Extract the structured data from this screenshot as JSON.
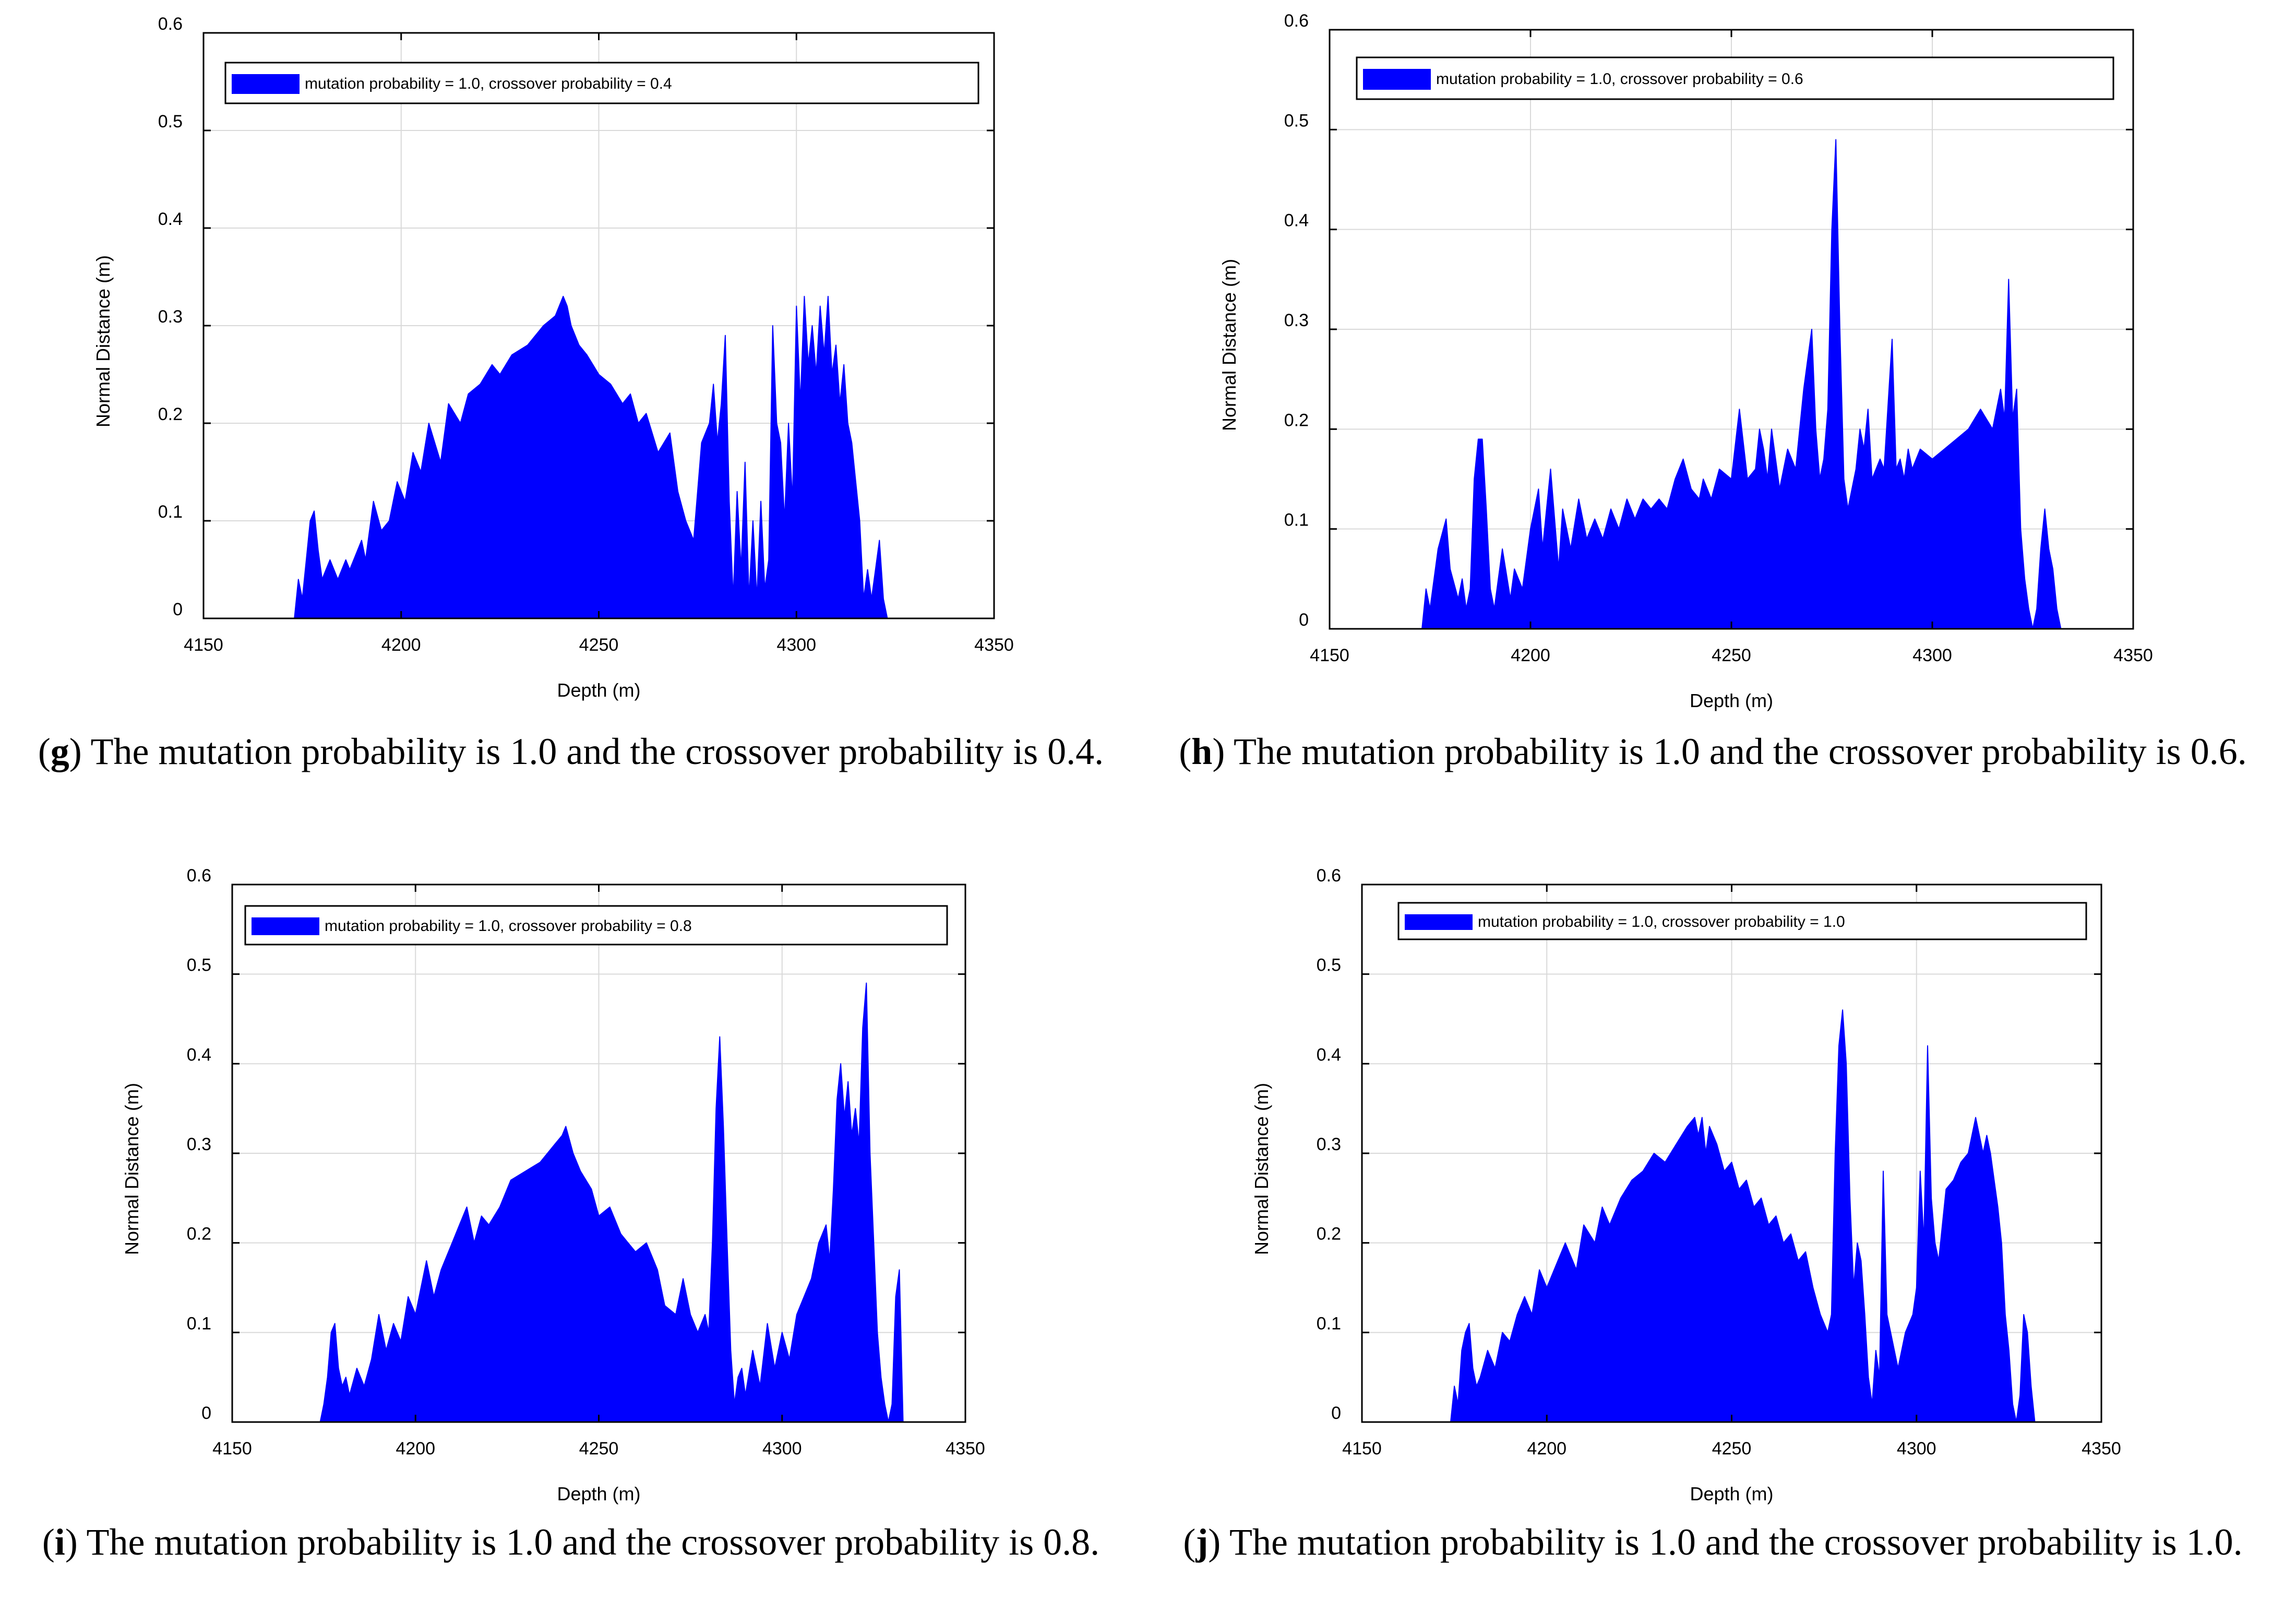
{
  "figure": {
    "captions": [
      {
        "letter": "g",
        "text": "The mutation probability is 1.0 and the crossover probability is 0.4."
      },
      {
        "letter": "h",
        "text": "The mutation probability is 1.0 and the crossover probability is 0.6."
      },
      {
        "letter": "i",
        "text": "The mutation probability is 1.0 and the crossover probability is 0.8."
      },
      {
        "letter": "j",
        "text": "The mutation probability is 1.0 and the crossover probability is 1.0."
      }
    ]
  },
  "colors": {
    "fill": "#0000ff",
    "grid": "#d9d9d9",
    "axis": "#000000"
  },
  "chart_data": [
    {
      "type": "area",
      "panel": "g",
      "xlabel": "Depth (m)",
      "ylabel": "Normal Distance (m)",
      "xlim": [
        4150,
        4350
      ],
      "ylim": [
        0,
        0.6
      ],
      "xticks": [
        4150,
        4200,
        4250,
        4300,
        4350
      ],
      "yticks": [
        0,
        0.1,
        0.2,
        0.3,
        0.4,
        0.5,
        0.6
      ],
      "grid": true,
      "legend": "top",
      "series": [
        {
          "name": "mutation probability = 1.0, crossover probability = 0.4",
          "x": [
            4173,
            4174,
            4175,
            4176,
            4177,
            4178,
            4179,
            4180,
            4181,
            4182,
            4184,
            4186,
            4187,
            4189,
            4190,
            4191,
            4193,
            4195,
            4197,
            4199,
            4201,
            4203,
            4205,
            4207,
            4210,
            4212,
            4215,
            4217,
            4220,
            4223,
            4225,
            4228,
            4232,
            4236,
            4239,
            4241,
            4242,
            4243,
            4245,
            4247,
            4250,
            4253,
            4256,
            4258,
            4260,
            4262,
            4265,
            4268,
            4270,
            4272,
            4274,
            4276,
            4278,
            4279,
            4280,
            4281,
            4282,
            4283,
            4284,
            4285,
            4286,
            4287,
            4288,
            4289,
            4290,
            4291,
            4292,
            4293,
            4294,
            4295,
            4296,
            4297,
            4298,
            4299,
            4300,
            4301,
            4302,
            4303,
            4304,
            4305,
            4306,
            4307,
            4308,
            4309,
            4310,
            4311,
            4312,
            4313,
            4314,
            4315,
            4316,
            4317,
            4318,
            4319,
            4320,
            4321,
            4322,
            4323,
            4324,
            4325,
            4326,
            4327,
            4328,
            4329,
            4330,
            4331,
            4332,
            4333
          ],
          "y": [
            0,
            0.04,
            0.02,
            0.06,
            0.1,
            0.11,
            0.07,
            0.04,
            0.05,
            0.06,
            0.04,
            0.06,
            0.05,
            0.07,
            0.08,
            0.06,
            0.12,
            0.09,
            0.1,
            0.14,
            0.12,
            0.17,
            0.15,
            0.2,
            0.16,
            0.22,
            0.2,
            0.23,
            0.24,
            0.26,
            0.25,
            0.27,
            0.28,
            0.3,
            0.31,
            0.33,
            0.32,
            0.3,
            0.28,
            0.27,
            0.25,
            0.24,
            0.22,
            0.23,
            0.2,
            0.21,
            0.17,
            0.19,
            0.13,
            0.1,
            0.08,
            0.18,
            0.2,
            0.24,
            0.18,
            0.22,
            0.29,
            0.12,
            0.02,
            0.13,
            0.05,
            0.16,
            0.02,
            0.1,
            0.02,
            0.12,
            0.03,
            0.06,
            0.3,
            0.2,
            0.18,
            0.1,
            0.2,
            0.12,
            0.32,
            0.22,
            0.33,
            0.26,
            0.3,
            0.25,
            0.32,
            0.27,
            0.33,
            0.25,
            0.28,
            0.22,
            0.26,
            0.2,
            0.18,
            0.14,
            0.1,
            0.02,
            0.05,
            0.02,
            0.05,
            0.08,
            0.02,
            0,
            0,
            0,
            0,
            0,
            0,
            0,
            0,
            0,
            0,
            0
          ]
        }
      ]
    },
    {
      "type": "area",
      "panel": "h",
      "xlabel": "Depth (m)",
      "ylabel": "Normal Distance (m)",
      "xlim": [
        4150,
        4350
      ],
      "ylim": [
        0,
        0.6
      ],
      "xticks": [
        4150,
        4200,
        4250,
        4300,
        4350
      ],
      "yticks": [
        0,
        0.1,
        0.2,
        0.3,
        0.4,
        0.5,
        0.6
      ],
      "grid": true,
      "legend": "top",
      "series": [
        {
          "name": "mutation probability = 1.0, crossover probability = 0.6",
          "x": [
            4173,
            4174,
            4175,
            4177,
            4179,
            4180,
            4182,
            4183,
            4184,
            4185,
            4186,
            4187,
            4188,
            4189,
            4190,
            4191,
            4193,
            4195,
            4196,
            4198,
            4200,
            4202,
            4203,
            4205,
            4207,
            4208,
            4210,
            4212,
            4214,
            4216,
            4218,
            4220,
            4222,
            4224,
            4226,
            4228,
            4230,
            4232,
            4234,
            4236,
            4238,
            4240,
            4242,
            4243,
            4245,
            4247,
            4250,
            4252,
            4254,
            4256,
            4257,
            4258,
            4259,
            4260,
            4262,
            4264,
            4266,
            4268,
            4270,
            4271,
            4272,
            4273,
            4274,
            4275,
            4276,
            4277,
            4278,
            4279,
            4280,
            4281,
            4282,
            4283,
            4284,
            4285,
            4287,
            4288,
            4290,
            4291,
            4292,
            4293,
            4294,
            4295,
            4297,
            4300,
            4303,
            4306,
            4309,
            4312,
            4315,
            4317,
            4318,
            4319,
            4320,
            4321,
            4322,
            4323,
            4324,
            4325,
            4326,
            4327,
            4328,
            4329,
            4330,
            4331,
            4332,
            4333
          ],
          "y": [
            0,
            0.04,
            0.02,
            0.08,
            0.11,
            0.06,
            0.03,
            0.05,
            0.02,
            0.04,
            0.15,
            0.19,
            0.19,
            0.12,
            0.04,
            0.02,
            0.08,
            0.03,
            0.06,
            0.04,
            0.1,
            0.14,
            0.08,
            0.16,
            0.06,
            0.12,
            0.08,
            0.13,
            0.09,
            0.11,
            0.09,
            0.12,
            0.1,
            0.13,
            0.11,
            0.13,
            0.12,
            0.13,
            0.12,
            0.15,
            0.17,
            0.14,
            0.13,
            0.15,
            0.13,
            0.16,
            0.15,
            0.22,
            0.15,
            0.16,
            0.2,
            0.18,
            0.15,
            0.2,
            0.14,
            0.18,
            0.16,
            0.24,
            0.3,
            0.2,
            0.15,
            0.17,
            0.22,
            0.4,
            0.49,
            0.3,
            0.15,
            0.12,
            0.14,
            0.16,
            0.2,
            0.18,
            0.22,
            0.15,
            0.17,
            0.16,
            0.29,
            0.16,
            0.17,
            0.15,
            0.18,
            0.16,
            0.18,
            0.17,
            0.18,
            0.19,
            0.2,
            0.22,
            0.2,
            0.24,
            0.21,
            0.35,
            0.21,
            0.24,
            0.1,
            0.05,
            0.02,
            0.0,
            0.02,
            0.08,
            0.12,
            0.08,
            0.06,
            0.02,
            0,
            0
          ]
        }
      ]
    },
    {
      "type": "area",
      "panel": "i",
      "xlabel": "Depth (m)",
      "ylabel": "Normal Distance (m)",
      "xlim": [
        4150,
        4350
      ],
      "ylim": [
        0,
        0.6
      ],
      "xticks": [
        4150,
        4200,
        4250,
        4300,
        4350
      ],
      "yticks": [
        0,
        0.1,
        0.2,
        0.3,
        0.4,
        0.5,
        0.6
      ],
      "grid": true,
      "legend": "top",
      "series": [
        {
          "name": "mutation probability = 1.0, crossover probability = 0.8",
          "x": [
            4174,
            4175,
            4176,
            4177,
            4178,
            4179,
            4180,
            4181,
            4182,
            4184,
            4186,
            4188,
            4190,
            4192,
            4194,
            4196,
            4198,
            4200,
            4203,
            4205,
            4207,
            4210,
            4212,
            4214,
            4216,
            4218,
            4220,
            4223,
            4226,
            4230,
            4234,
            4238,
            4240,
            4241,
            4243,
            4245,
            4248,
            4250,
            4253,
            4256,
            4258,
            4260,
            4263,
            4266,
            4268,
            4271,
            4273,
            4275,
            4277,
            4279,
            4280,
            4281,
            4282,
            4283,
            4284,
            4285,
            4286,
            4287,
            4288,
            4289,
            4290,
            4292,
            4294,
            4296,
            4298,
            4300,
            4302,
            4304,
            4306,
            4308,
            4310,
            4312,
            4313,
            4314,
            4315,
            4316,
            4317,
            4318,
            4319,
            4320,
            4321,
            4322,
            4323,
            4324,
            4325,
            4326,
            4327,
            4328,
            4329,
            4330,
            4331,
            4332,
            4333
          ],
          "y": [
            0,
            0.02,
            0.05,
            0.1,
            0.11,
            0.06,
            0.04,
            0.05,
            0.03,
            0.06,
            0.04,
            0.07,
            0.12,
            0.08,
            0.11,
            0.09,
            0.14,
            0.12,
            0.18,
            0.14,
            0.17,
            0.2,
            0.22,
            0.24,
            0.2,
            0.23,
            0.22,
            0.24,
            0.27,
            0.28,
            0.29,
            0.31,
            0.32,
            0.33,
            0.3,
            0.28,
            0.26,
            0.23,
            0.24,
            0.21,
            0.2,
            0.19,
            0.2,
            0.17,
            0.13,
            0.12,
            0.16,
            0.12,
            0.1,
            0.12,
            0.1,
            0.2,
            0.35,
            0.43,
            0.33,
            0.2,
            0.08,
            0.02,
            0.05,
            0.06,
            0.03,
            0.08,
            0.04,
            0.11,
            0.06,
            0.1,
            0.07,
            0.12,
            0.14,
            0.16,
            0.2,
            0.22,
            0.18,
            0.26,
            0.36,
            0.4,
            0.34,
            0.38,
            0.32,
            0.35,
            0.31,
            0.44,
            0.49,
            0.3,
            0.2,
            0.1,
            0.05,
            0.02,
            0.0,
            0.02,
            0.14,
            0.17,
            0
          ]
        }
      ]
    },
    {
      "type": "area",
      "panel": "j",
      "xlabel": "Depth (m)",
      "ylabel": "Normal Distance (m)",
      "xlim": [
        4150,
        4350
      ],
      "ylim": [
        0,
        0.6
      ],
      "xticks": [
        4150,
        4200,
        4250,
        4300,
        4350
      ],
      "yticks": [
        0,
        0.1,
        0.2,
        0.3,
        0.4,
        0.5,
        0.6
      ],
      "grid": true,
      "legend": "top",
      "series": [
        {
          "name": "mutation probability = 1.0, crossover probability = 1.0",
          "x": [
            4174,
            4175,
            4176,
            4177,
            4178,
            4179,
            4180,
            4181,
            4182,
            4184,
            4186,
            4188,
            4190,
            4192,
            4194,
            4196,
            4198,
            4200,
            4203,
            4205,
            4208,
            4210,
            4213,
            4215,
            4217,
            4220,
            4223,
            4226,
            4229,
            4232,
            4235,
            4238,
            4240,
            4241,
            4242,
            4243,
            4244,
            4246,
            4248,
            4250,
            4252,
            4254,
            4256,
            4258,
            4260,
            4262,
            4264,
            4266,
            4268,
            4270,
            4272,
            4274,
            4276,
            4277,
            4278,
            4279,
            4280,
            4281,
            4282,
            4283,
            4284,
            4285,
            4286,
            4287,
            4288,
            4289,
            4290,
            4291,
            4292,
            4293,
            4295,
            4297,
            4299,
            4300,
            4301,
            4302,
            4303,
            4304,
            4305,
            4306,
            4307,
            4308,
            4310,
            4312,
            4314,
            4316,
            4318,
            4319,
            4320,
            4321,
            4322,
            4323,
            4324,
            4325,
            4326,
            4327,
            4328,
            4329,
            4330,
            4331,
            4332,
            4333
          ],
          "y": [
            0,
            0.04,
            0.02,
            0.08,
            0.1,
            0.11,
            0.06,
            0.04,
            0.05,
            0.08,
            0.06,
            0.1,
            0.09,
            0.12,
            0.14,
            0.12,
            0.17,
            0.15,
            0.18,
            0.2,
            0.17,
            0.22,
            0.2,
            0.24,
            0.22,
            0.25,
            0.27,
            0.28,
            0.3,
            0.29,
            0.31,
            0.33,
            0.34,
            0.32,
            0.34,
            0.3,
            0.33,
            0.31,
            0.28,
            0.29,
            0.26,
            0.27,
            0.24,
            0.25,
            0.22,
            0.23,
            0.2,
            0.21,
            0.18,
            0.19,
            0.15,
            0.12,
            0.1,
            0.12,
            0.3,
            0.42,
            0.46,
            0.4,
            0.25,
            0.15,
            0.2,
            0.18,
            0.12,
            0.05,
            0.02,
            0.08,
            0.05,
            0.28,
            0.12,
            0.1,
            0.06,
            0.1,
            0.12,
            0.15,
            0.28,
            0.2,
            0.42,
            0.25,
            0.2,
            0.18,
            0.22,
            0.26,
            0.27,
            0.29,
            0.3,
            0.34,
            0.3,
            0.32,
            0.3,
            0.27,
            0.24,
            0.2,
            0.12,
            0.08,
            0.02,
            0.0,
            0.03,
            0.12,
            0.1,
            0.04,
            0,
            0
          ]
        }
      ]
    }
  ]
}
